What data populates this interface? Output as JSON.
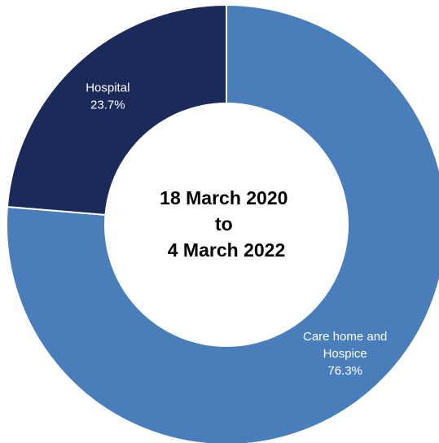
{
  "chart_data": {
    "type": "pie",
    "variant": "donut",
    "center_label": [
      "18 March 2020",
      "to",
      "4 March 2022"
    ],
    "slices": [
      {
        "name": "Care home and Hospice",
        "value": 76.3,
        "label_lines": [
          "Care home and",
          "Hospice",
          "76.3%"
        ],
        "color": "#4a7ebb"
      },
      {
        "name": "Hospital",
        "value": 23.7,
        "label_lines": [
          "Hospital",
          "23.7%"
        ],
        "color": "#1c2a59"
      }
    ],
    "start_angle": "12 o'clock",
    "direction": "clockwise",
    "legend": "none"
  }
}
